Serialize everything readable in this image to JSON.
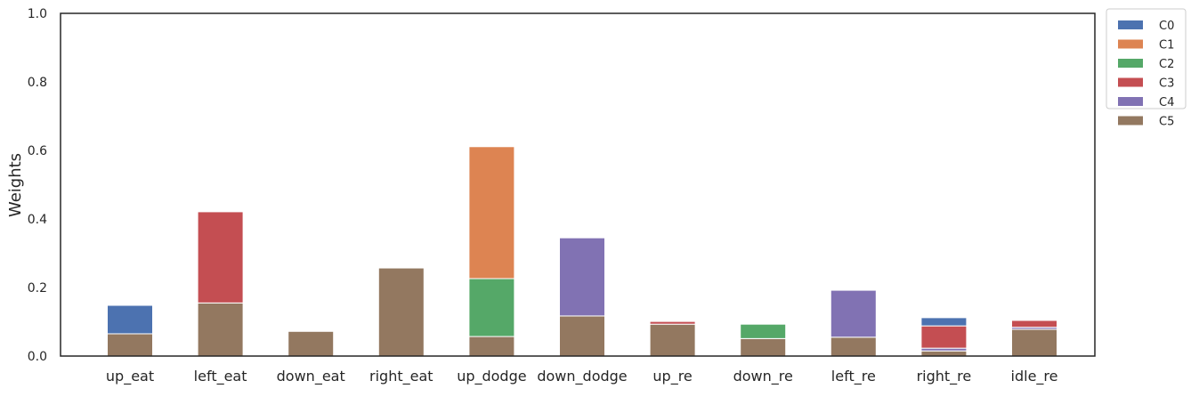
{
  "chart_data": {
    "type": "bar",
    "stacked": true,
    "title": "",
    "xlabel": "",
    "ylabel": "Weights",
    "ylim": [
      0,
      1.0
    ],
    "yticks": [
      "0.0",
      "0.2",
      "0.4",
      "0.6",
      "0.8",
      "1.0"
    ],
    "grid": false,
    "legend_position": "outside-top-right",
    "categories": [
      "up_eat",
      "left_eat",
      "down_eat",
      "right_eat",
      "up_dodge",
      "down_dodge",
      "up_re",
      "down_re",
      "left_re",
      "right_re",
      "idle_re"
    ],
    "series": [
      {
        "name": "C5",
        "color": "#937860",
        "values": [
          0.065,
          0.155,
          0.072,
          0.257,
          0.057,
          0.117,
          0.093,
          0.051,
          0.055,
          0.015,
          0.078
        ]
      },
      {
        "name": "C4",
        "color": "#8172b3",
        "values": [
          0.0,
          0.0,
          0.0,
          0.0,
          0.0,
          0.228,
          0.0,
          0.0,
          0.137,
          0.008,
          0.006
        ]
      },
      {
        "name": "C3",
        "color": "#c44e52",
        "values": [
          0.0,
          0.266,
          0.0,
          0.0,
          0.0,
          0.0,
          0.008,
          0.0,
          0.0,
          0.065,
          0.02
        ]
      },
      {
        "name": "C2",
        "color": "#55a868",
        "values": [
          0.0,
          0.0,
          0.0,
          0.0,
          0.169,
          0.0,
          0.0,
          0.042,
          0.0,
          0.0,
          0.0
        ]
      },
      {
        "name": "C1",
        "color": "#dd8452",
        "values": [
          0.0,
          0.0,
          0.0,
          0.0,
          0.385,
          0.0,
          0.0,
          0.0,
          0.0,
          0.0,
          0.0
        ]
      },
      {
        "name": "C0",
        "color": "#4c72b0",
        "values": [
          0.083,
          0.0,
          0.0,
          0.0,
          0.0,
          0.0,
          0.0,
          0.0,
          0.0,
          0.024,
          0.0
        ]
      }
    ],
    "legend_order": [
      "C0",
      "C1",
      "C2",
      "C3",
      "C4",
      "C5"
    ]
  }
}
